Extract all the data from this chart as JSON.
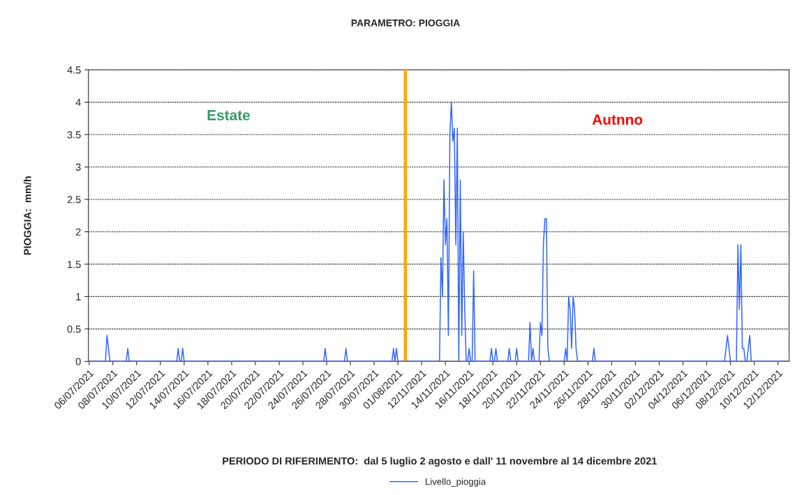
{
  "chart_data": {
    "type": "line",
    "title": "PARAMETRO: PIOGGIA",
    "xlabel": "PERIODO DI RIFERIMENTO:  dal 5 luglio 2 agosto e dall' 11 novembre al 14 dicembre 2021",
    "ylabel": "PIOGGIA:  mm/h",
    "annotations": [
      "Estate",
      "Autnno"
    ],
    "categories": [
      "06/07/2021",
      null,
      null,
      null,
      null,
      null,
      null,
      null,
      null,
      null,
      null,
      null,
      null,
      null,
      null,
      null,
      "08/07/2021",
      null,
      null,
      null,
      null,
      null,
      null,
      null,
      null,
      null,
      null,
      null,
      null,
      null,
      null,
      null,
      "10/07/2021",
      null,
      null,
      null,
      null,
      null,
      null,
      null,
      null,
      null,
      null,
      null,
      null,
      null,
      null,
      null,
      "12/07/2021",
      null,
      null,
      null,
      null,
      null,
      null,
      null,
      null,
      null,
      null,
      null,
      null,
      null,
      null,
      null,
      "14/07/2021",
      null,
      null,
      null,
      null,
      null,
      null,
      null,
      null,
      null,
      null,
      null,
      null,
      null,
      null,
      null,
      "16/07/2021",
      null,
      null,
      null,
      null,
      null,
      null,
      null,
      null,
      null,
      null,
      null,
      null,
      null,
      null,
      null,
      "18/07/2021",
      null,
      null,
      null,
      null,
      null,
      null,
      null,
      null,
      null,
      null,
      null,
      null,
      null,
      null,
      null,
      "20/07/2021",
      null,
      null,
      null,
      null,
      null,
      null,
      null,
      null,
      null,
      null,
      null,
      null,
      null,
      null,
      null,
      "22/07/2021",
      null,
      null,
      null,
      null,
      null,
      null,
      null,
      null,
      null,
      null,
      null,
      null,
      null,
      null,
      null,
      "24/07/2021",
      null,
      null,
      null,
      null,
      null,
      null,
      null,
      null,
      null,
      null,
      null,
      null,
      null,
      null,
      null,
      "26/07/2021",
      null,
      null,
      null,
      null,
      null,
      null,
      null,
      null,
      null,
      null,
      null,
      null,
      null,
      null,
      null,
      "28/07/2021",
      null,
      null,
      null,
      null,
      null,
      null,
      null,
      null,
      null,
      null,
      null,
      null,
      null,
      null,
      null,
      "30/07/2021",
      null,
      null,
      null,
      null,
      null,
      null,
      null,
      null,
      null,
      null,
      null,
      null,
      null,
      null,
      null,
      "01/08/2021",
      null,
      null,
      null,
      null,
      null,
      null,
      null,
      null,
      null,
      null,
      null,
      null,
      null,
      null,
      null,
      "12/11/2021",
      null,
      null,
      null,
      null,
      null,
      null,
      null,
      null,
      null,
      null,
      null,
      null,
      null,
      null,
      null,
      "14/11/2021",
      null,
      null,
      null,
      null,
      null,
      null,
      null,
      null,
      null,
      null,
      null,
      null,
      null,
      null,
      null,
      "16/11/2021",
      null,
      null,
      null,
      null,
      null,
      null,
      null,
      null,
      null,
      null,
      null,
      null,
      null,
      null,
      null,
      "18/11/2021",
      null,
      null,
      null,
      null,
      null,
      null,
      null,
      null,
      null,
      null,
      null,
      null,
      null,
      null,
      null,
      "20/11/2021",
      null,
      null,
      null,
      null,
      null,
      null,
      null,
      null,
      null,
      null,
      null,
      null,
      null,
      null,
      null,
      "22/11/2021",
      null,
      null,
      null,
      null,
      null,
      null,
      null,
      null,
      null,
      null,
      null,
      null,
      null,
      null,
      null,
      "24/11/2021",
      null,
      null,
      null,
      null,
      null,
      null,
      null,
      null,
      null,
      null,
      null,
      null,
      null,
      null,
      null,
      "26/11/2021",
      null,
      null,
      null,
      null,
      null,
      null,
      null,
      null,
      null,
      null,
      null,
      null,
      null,
      null,
      null,
      "28/11/2021",
      null,
      null,
      null,
      null,
      null,
      null,
      null,
      null,
      null,
      null,
      null,
      null,
      null,
      null,
      null,
      "30/11/2021",
      null,
      null,
      null,
      null,
      null,
      null,
      null,
      null,
      null,
      null,
      null,
      null,
      null,
      null,
      null,
      "02/12/2021",
      null,
      null,
      null,
      null,
      null,
      null,
      null,
      null,
      null,
      null,
      null,
      null,
      null,
      null,
      null,
      "04/12/2021",
      null,
      null,
      null,
      null,
      null,
      null,
      null,
      null,
      null,
      null,
      null,
      null,
      null,
      null,
      null,
      "06/12/2021",
      null,
      null,
      null,
      null,
      null,
      null,
      null,
      null,
      null,
      null,
      null,
      null,
      null,
      null,
      null,
      "08/12/2021",
      null,
      null,
      null,
      null,
      null,
      null,
      null,
      null,
      null,
      null,
      null,
      null,
      null,
      null,
      null,
      "10/12/2021",
      null,
      null,
      null,
      null,
      null,
      null,
      null,
      null,
      null,
      null,
      null,
      null,
      null,
      null,
      null,
      "12/12/2021",
      null,
      null,
      null,
      null,
      null,
      null,
      null
    ],
    "series": [
      {
        "name": "Livello_pioggia",
        "color": "#3366ff",
        "values": [
          0,
          0,
          0,
          0,
          0,
          0,
          0,
          0,
          0,
          0,
          0,
          0,
          0.4,
          0.2,
          0,
          0,
          0,
          0,
          0,
          0,
          0,
          0,
          0,
          0,
          0,
          0,
          0.2,
          0,
          0,
          0,
          0,
          0,
          0,
          0,
          0,
          0,
          0,
          0,
          0,
          0,
          0,
          0,
          0,
          0,
          0,
          0,
          0,
          0,
          0,
          0,
          0,
          0,
          0,
          0,
          0,
          0,
          0,
          0,
          0,
          0,
          0.2,
          0,
          0,
          0.2,
          0,
          0,
          0,
          0,
          0,
          0,
          0,
          0,
          0,
          0,
          0,
          0,
          0,
          0,
          0,
          0,
          0,
          0,
          0,
          0,
          0,
          0,
          0,
          0,
          0,
          0,
          0,
          0,
          0,
          0,
          0,
          0,
          0,
          0,
          0,
          0,
          0,
          0,
          0,
          0,
          0,
          0,
          0,
          0,
          0,
          0,
          0,
          0,
          0,
          0,
          0,
          0,
          0,
          0,
          0,
          0,
          0,
          0,
          0,
          0,
          0,
          0,
          0,
          0,
          0,
          0,
          0,
          0,
          0,
          0,
          0,
          0,
          0,
          0,
          0,
          0,
          0,
          0,
          0,
          0,
          0,
          0,
          0,
          0,
          0,
          0,
          0,
          0,
          0,
          0,
          0,
          0,
          0,
          0,
          0,
          0.2,
          0,
          0,
          0,
          0,
          0,
          0,
          0,
          0,
          0,
          0,
          0,
          0,
          0,
          0.2,
          0,
          0,
          0,
          0,
          0,
          0,
          0,
          0,
          0,
          0,
          0,
          0,
          0,
          0,
          0,
          0,
          0,
          0,
          0,
          0,
          0,
          0,
          0,
          0,
          0,
          0,
          0,
          0,
          0,
          0,
          0,
          0.2,
          0,
          0.2,
          0,
          0,
          0,
          0,
          0,
          0,
          0,
          0,
          0,
          0,
          0,
          0,
          0,
          0,
          0,
          0,
          0,
          0,
          0,
          0,
          0,
          0,
          0,
          0,
          0,
          0,
          0,
          0,
          0,
          1.6,
          1.0,
          2.8,
          1.8,
          2.2,
          0.4,
          3.5,
          4.0,
          3.4,
          3.6,
          1.8,
          3.6,
          0,
          2.8,
          0.4,
          2.0,
          0.8,
          0,
          0,
          0.2,
          0,
          0,
          1.4,
          0,
          0,
          0,
          0,
          0,
          0,
          0,
          0,
          0,
          0,
          0,
          0.2,
          0,
          0,
          0.2,
          0,
          0,
          0,
          0,
          0,
          0,
          0,
          0,
          0.2,
          0,
          0,
          0,
          0,
          0.2,
          0,
          0,
          0,
          0,
          0,
          0,
          0,
          0,
          0.6,
          0,
          0.2,
          0,
          0,
          0,
          0,
          0.6,
          0.4,
          1.8,
          2.2,
          2.2,
          0.2,
          0,
          0,
          0,
          0,
          0,
          0,
          0,
          0,
          0,
          0,
          0,
          0.2,
          0,
          1.0,
          0.8,
          0.2,
          1.0,
          0.8,
          0.2,
          0,
          0,
          0,
          0,
          0,
          0,
          0,
          0,
          0,
          0,
          0,
          0.2,
          0,
          0,
          0,
          0,
          0,
          0,
          0,
          0,
          0,
          0,
          0,
          0,
          0,
          0,
          0,
          0,
          0,
          0,
          0,
          0,
          0,
          0,
          0,
          0,
          0,
          0,
          0,
          0,
          0,
          0,
          0,
          0,
          0,
          0,
          0,
          0,
          0,
          0,
          0,
          0,
          0,
          0,
          0,
          0,
          0,
          0,
          0,
          0,
          0,
          0,
          0,
          0,
          0,
          0,
          0,
          0,
          0,
          0,
          0,
          0,
          0,
          0,
          0,
          0,
          0,
          0,
          0,
          0,
          0,
          0,
          0,
          0,
          0,
          0,
          0,
          0,
          0,
          0,
          0,
          0,
          0,
          0,
          0,
          0,
          0,
          0,
          0,
          0,
          0.2,
          0.4,
          0.2,
          0,
          0,
          0,
          0,
          0,
          1.8,
          0.8,
          1.8,
          0.2,
          0.2,
          0,
          0,
          0.2,
          0.4,
          0,
          0,
          0,
          0,
          0,
          0,
          0,
          0,
          0,
          0,
          0,
          0,
          0,
          0,
          0,
          0,
          0,
          0,
          0,
          0,
          0,
          0,
          0,
          0,
          0,
          0
        ]
      },
      {
        "type": "bar",
        "color": "#ffa500",
        "values": [
          null,
          null,
          null,
          null,
          null,
          null,
          null,
          null,
          null,
          null,
          null,
          null,
          null,
          null,
          null,
          null,
          null,
          null,
          null,
          null,
          null,
          null,
          null,
          null,
          null,
          null,
          null,
          null,
          null,
          null,
          null,
          null,
          null,
          null,
          null,
          null,
          null,
          null,
          null,
          null,
          null,
          null,
          null,
          null,
          null,
          null,
          null,
          null,
          null,
          null,
          null,
          null,
          null,
          null,
          null,
          null,
          null,
          null,
          null,
          null,
          null,
          null,
          null,
          null,
          null,
          null,
          null,
          null,
          null,
          null,
          null,
          null,
          null,
          null,
          null,
          null,
          null,
          null,
          null,
          null,
          null,
          null,
          null,
          null,
          null,
          null,
          null,
          null,
          null,
          null,
          null,
          null,
          null,
          null,
          null,
          null,
          null,
          null,
          null,
          null,
          null,
          null,
          null,
          null,
          null,
          null,
          null,
          null,
          null,
          null,
          null,
          null,
          null,
          null,
          null,
          null,
          null,
          null,
          null,
          null,
          null,
          null,
          null,
          null,
          null,
          null,
          null,
          null,
          null,
          null,
          null,
          null,
          null,
          null,
          null,
          null,
          null,
          null,
          null,
          null,
          null,
          null,
          null,
          null,
          null,
          null,
          null,
          null,
          null,
          null,
          null,
          null,
          null,
          null,
          null,
          null,
          null,
          null,
          null,
          null,
          null,
          null,
          null,
          null,
          null,
          null,
          null,
          null,
          null,
          null,
          null,
          null,
          null,
          null,
          null,
          null,
          null,
          null,
          null,
          null,
          null,
          null,
          null,
          null,
          null,
          null,
          null,
          null,
          null,
          null,
          null,
          null,
          null,
          null,
          null,
          null,
          null,
          null,
          null,
          null,
          null,
          null,
          null,
          null,
          null,
          null,
          null,
          null,
          null,
          null,
          null,
          null,
          null,
          4.5,
          null,
          null,
          null,
          null,
          null,
          null,
          null,
          null,
          null,
          null,
          null,
          null,
          null,
          null,
          null,
          null,
          null,
          null,
          null,
          null,
          null,
          null,
          null,
          null,
          null,
          null,
          null,
          null,
          null,
          null,
          null,
          null,
          null,
          null,
          null,
          null,
          null,
          null,
          null,
          null,
          null,
          null,
          null,
          null,
          null,
          null,
          null,
          null,
          null,
          null,
          null,
          null,
          null,
          null,
          null,
          null,
          null,
          null,
          null,
          null,
          null,
          null,
          null,
          null,
          null,
          null,
          null,
          null,
          null,
          null,
          null,
          null,
          null,
          null,
          null,
          null,
          null,
          null,
          null,
          null,
          null,
          null,
          null,
          null,
          null,
          null,
          null,
          null,
          null,
          null,
          null,
          null,
          null,
          null,
          null,
          null,
          null,
          null,
          null,
          null,
          null,
          null,
          null,
          null,
          null,
          null,
          null,
          null,
          null,
          null,
          null,
          null,
          null,
          null,
          null,
          null,
          null,
          null,
          null,
          null,
          null,
          null,
          null,
          null,
          null,
          null,
          null,
          null,
          null,
          null,
          null,
          null,
          null,
          null,
          null,
          null,
          null,
          null,
          null,
          null,
          null,
          null,
          null,
          null,
          null,
          null,
          null,
          null,
          null,
          null,
          null,
          null,
          null,
          null,
          null,
          null,
          null,
          null,
          null,
          null,
          null,
          null,
          null,
          null,
          null,
          null,
          null,
          null,
          null,
          null,
          null,
          null,
          null,
          null,
          null,
          null,
          null,
          null,
          null,
          null,
          null,
          null,
          null,
          null,
          null,
          null,
          null,
          null,
          null,
          null,
          null,
          null,
          null,
          null,
          null,
          null,
          null,
          null,
          null,
          null,
          null,
          null,
          null,
          null,
          null,
          null,
          null,
          null,
          null,
          null,
          null,
          null,
          null,
          null,
          null,
          null,
          null,
          null,
          null,
          null,
          null,
          null,
          null,
          null,
          null,
          null,
          null,
          null,
          null,
          null,
          null,
          null,
          null,
          null,
          null,
          null,
          null,
          null,
          null,
          null,
          null,
          null,
          null,
          null,
          null,
          null,
          null,
          null,
          null,
          null,
          null,
          null,
          null,
          null,
          null,
          null,
          null,
          null
        ]
      }
    ],
    "ylim": [
      0,
      4.5
    ],
    "yticks": [
      0,
      0.5,
      1,
      1.5,
      2,
      2.5,
      3,
      3.5,
      4,
      4.5
    ],
    "grid": "y",
    "legend": "bottom",
    "marker": "none",
    "line_style": "solid"
  }
}
